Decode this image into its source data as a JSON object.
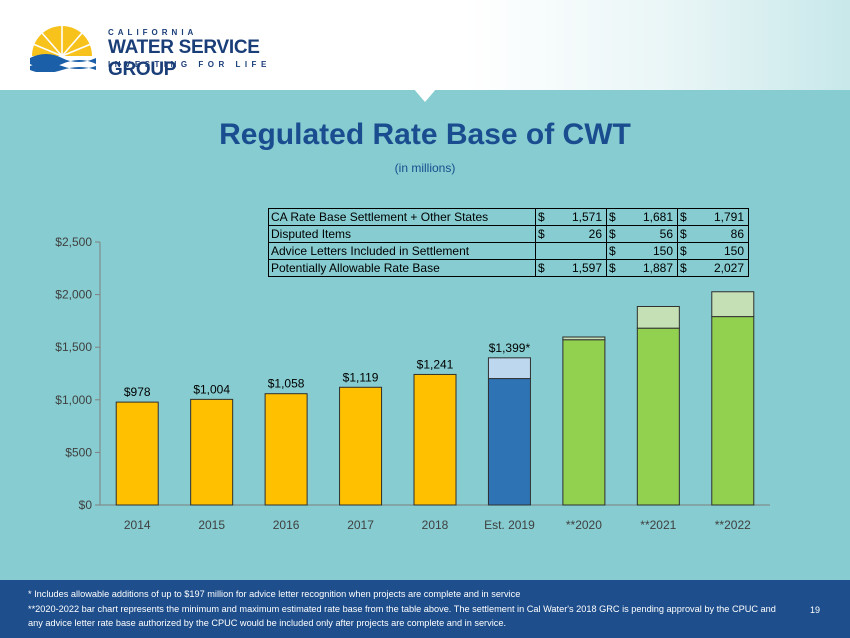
{
  "header": {
    "logo_top": "CALIFORNIA",
    "logo_name": "WATER SERVICE GROUP",
    "logo_tagline": "INVESTING FOR LIFE"
  },
  "title": "Regulated Rate Base of CWT",
  "subtitle": "(in millions)",
  "table": {
    "rows": [
      {
        "label": "CA Rate Base Settlement + Other States",
        "cells": [
          [
            "$",
            "1,571"
          ],
          [
            "$",
            "1,681"
          ],
          [
            "$",
            "1,791"
          ]
        ]
      },
      {
        "label": "Disputed Items",
        "cells": [
          [
            "$",
            "26"
          ],
          [
            "$",
            "56"
          ],
          [
            "$",
            "86"
          ]
        ]
      },
      {
        "label": "Advice Letters Included in Settlement",
        "cells": [
          [
            "",
            ""
          ],
          [
            "$",
            "150"
          ],
          [
            "$",
            "150"
          ]
        ]
      },
      {
        "label": "Potentially Allowable Rate Base",
        "cells": [
          [
            "$",
            "1,597"
          ],
          [
            "$",
            "1,887"
          ],
          [
            "$",
            "2,027"
          ]
        ]
      }
    ]
  },
  "chart_data": {
    "type": "bar",
    "categories": [
      "2014",
      "2015",
      "2016",
      "2017",
      "2018",
      "Est. 2019",
      "**2020",
      "**2021",
      "**2022"
    ],
    "series": [
      {
        "values": [
          978,
          1004,
          1058,
          1119,
          1241,
          1202,
          1571,
          1681,
          1791
        ]
      },
      {
        "values": [
          0,
          0,
          0,
          0,
          0,
          197,
          26,
          206,
          236
        ]
      }
    ],
    "data_labels": [
      "$978",
      "$1,004",
      "$1,058",
      "$1,119",
      "$1,241",
      "$1,399*",
      "",
      "",
      ""
    ],
    "ytick_labels": [
      "$0",
      "$500",
      "$1,000",
      "$1,500",
      "$2,000",
      "$2,500"
    ],
    "ylim": [
      0,
      2500
    ],
    "grid": false,
    "colors": {
      "historical": "#ffc000",
      "historical_border": "#2f2f2f",
      "est_base": "#2e74b5",
      "est_top": "#bdd7ee",
      "projected_base": "#92d050",
      "projected_top": "#c5e0b4"
    }
  },
  "footnotes": {
    "line1": "* Includes allowable additions of up to $197 million for advice letter recognition when projects are complete and in service",
    "line2": "**2020-2022 bar chart represents the minimum and maximum estimated rate base from the table above. The settlement in Cal Water's 2018 GRC is pending approval by the CPUC and any advice letter rate base authorized by the CPUC would be included only after projects are complete and in service.",
    "page": "19"
  }
}
